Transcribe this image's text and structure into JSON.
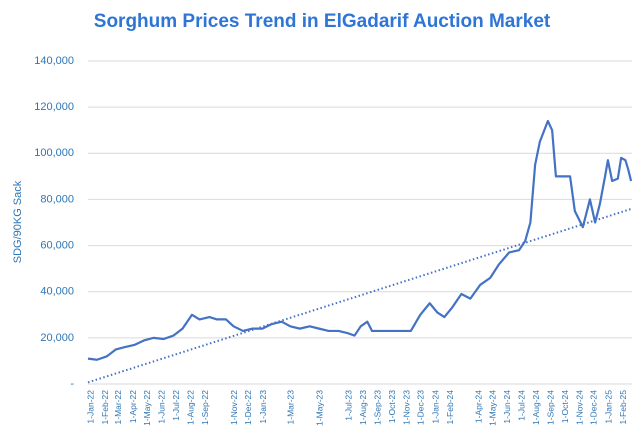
{
  "chart_data": {
    "type": "line",
    "title": "Sorghum Prices Trend in ElGadarif  Auction Market",
    "y_label": "SDG/90KG Sack",
    "color": "#4472c4",
    "x": [
      "2022-01-01",
      "2022-01-20",
      "2022-02-10",
      "2022-03-01",
      "2022-03-20",
      "2022-04-10",
      "2022-05-01",
      "2022-05-20",
      "2022-06-10",
      "2022-07-01",
      "2022-07-20",
      "2022-08-09",
      "2022-08-25",
      "2022-09-15",
      "2022-10-01",
      "2022-10-20",
      "2022-11-05",
      "2022-11-25",
      "2022-12-15",
      "2023-01-05",
      "2023-01-25",
      "2023-02-15",
      "2023-03-05",
      "2023-03-25",
      "2023-04-15",
      "2023-05-05",
      "2023-05-25",
      "2023-06-15",
      "2023-07-05",
      "2023-07-19",
      "2023-08-01",
      "2023-08-15",
      "2023-08-25",
      "2023-09-15",
      "2023-10-15",
      "2023-11-15",
      "2023-12-05",
      "2023-12-25",
      "2024-01-10",
      "2024-01-25",
      "2024-02-10",
      "2024-03-01",
      "2024-03-20",
      "2024-04-10",
      "2024-05-01",
      "2024-05-20",
      "2024-06-10",
      "2024-07-01",
      "2024-07-14",
      "2024-07-25",
      "2024-08-04",
      "2024-08-14",
      "2024-08-31",
      "2024-09-09",
      "2024-09-17",
      "2024-10-17",
      "2024-10-27",
      "2024-11-13",
      "2024-11-28",
      "2024-12-09",
      "2024-12-19",
      "2024-12-30",
      "2025-01-05",
      "2025-01-14",
      "2025-01-26",
      "2025-02-02",
      "2025-02-11",
      "2025-02-17",
      "2025-02-23"
    ],
    "values": [
      11000,
      10500,
      12000,
      15000,
      16000,
      17000,
      19000,
      20000,
      19500,
      21000,
      24000,
      30000,
      28000,
      29000,
      28000,
      28000,
      25000,
      23000,
      24000,
      24000,
      26000,
      27000,
      25000,
      24000,
      25000,
      24000,
      23000,
      23000,
      22000,
      21000,
      25000,
      27000,
      23000,
      23000,
      23000,
      23000,
      30000,
      35000,
      31000,
      29000,
      33000,
      39000,
      37000,
      43000,
      46000,
      52000,
      57000,
      58000,
      62000,
      70000,
      95000,
      105000,
      114000,
      110000,
      90000,
      90000,
      75000,
      68000,
      80000,
      70000,
      78000,
      90000,
      97000,
      88000,
      89000,
      98000,
      97000,
      93000,
      88000
    ],
    "trendline": {
      "x": [
        "2022-01-01",
        "2025-02-25"
      ],
      "values": [
        700,
        76000
      ],
      "color": "#4472c4"
    },
    "xlim": [
      "2022-01-01",
      "2025-02-25"
    ],
    "xticks": [
      {
        "value": "2022-01-01",
        "label": "1-Jan-22"
      },
      {
        "value": "2022-02-01",
        "label": "1-Feb-22"
      },
      {
        "value": "2022-03-01",
        "label": "1-Mar-22"
      },
      {
        "value": "2022-04-01",
        "label": "1-Apr-22"
      },
      {
        "value": "2022-05-01",
        "label": "1-May-22"
      },
      {
        "value": "2022-06-01",
        "label": "1-Jun-22"
      },
      {
        "value": "2022-07-01",
        "label": "1-Jul-22"
      },
      {
        "value": "2022-08-01",
        "label": "1-Aug-22"
      },
      {
        "value": "2022-09-01",
        "label": "1-Sep-22"
      },
      {
        "value": "2022-11-01",
        "label": "1-Nov-22"
      },
      {
        "value": "2022-12-01",
        "label": "1-Dec-22"
      },
      {
        "value": "2023-01-01",
        "label": "1-Jan-23"
      },
      {
        "value": "2023-03-01",
        "label": "1-Mar-23"
      },
      {
        "value": "2023-05-01",
        "label": "1-May-23"
      },
      {
        "value": "2023-07-01",
        "label": "1-Jul-23"
      },
      {
        "value": "2023-08-01",
        "label": "1-Aug-23"
      },
      {
        "value": "2023-09-01",
        "label": "1-Sep-23"
      },
      {
        "value": "2023-10-01",
        "label": "1-Oct-23"
      },
      {
        "value": "2023-11-01",
        "label": "1-Nov-23"
      },
      {
        "value": "2023-12-01",
        "label": "1-Dec-23"
      },
      {
        "value": "2024-01-01",
        "label": "1-Jan-24"
      },
      {
        "value": "2024-02-01",
        "label": "1-Feb-24"
      },
      {
        "value": "2024-04-01",
        "label": "1-Apr-24"
      },
      {
        "value": "2024-05-01",
        "label": "1-May-24"
      },
      {
        "value": "2024-06-01",
        "label": "1-Jun-24"
      },
      {
        "value": "2024-07-01",
        "label": "1-Jul-24"
      },
      {
        "value": "2024-08-01",
        "label": "1-Aug-24"
      },
      {
        "value": "2024-09-01",
        "label": "1-Sep-24"
      },
      {
        "value": "2024-10-01",
        "label": "1-Oct-24"
      },
      {
        "value": "2024-11-01",
        "label": "1-Nov-24"
      },
      {
        "value": "2024-12-01",
        "label": "1-Dec-24"
      },
      {
        "value": "2025-01-01",
        "label": "1-Jan-25"
      },
      {
        "value": "2025-02-01",
        "label": "1-Feb-25"
      }
    ],
    "ylim": [
      0,
      140000
    ],
    "yticks": [
      {
        "value": 0,
        "label": "-"
      },
      {
        "value": 20000,
        "label": "20,000"
      },
      {
        "value": 40000,
        "label": "40,000"
      },
      {
        "value": 60000,
        "label": "60,000"
      },
      {
        "value": 80000,
        "label": "80,000"
      },
      {
        "value": 100000,
        "label": "100,000"
      },
      {
        "value": 120000,
        "label": "120,000"
      },
      {
        "value": 140000,
        "label": "140,000"
      }
    ],
    "grid": true
  }
}
